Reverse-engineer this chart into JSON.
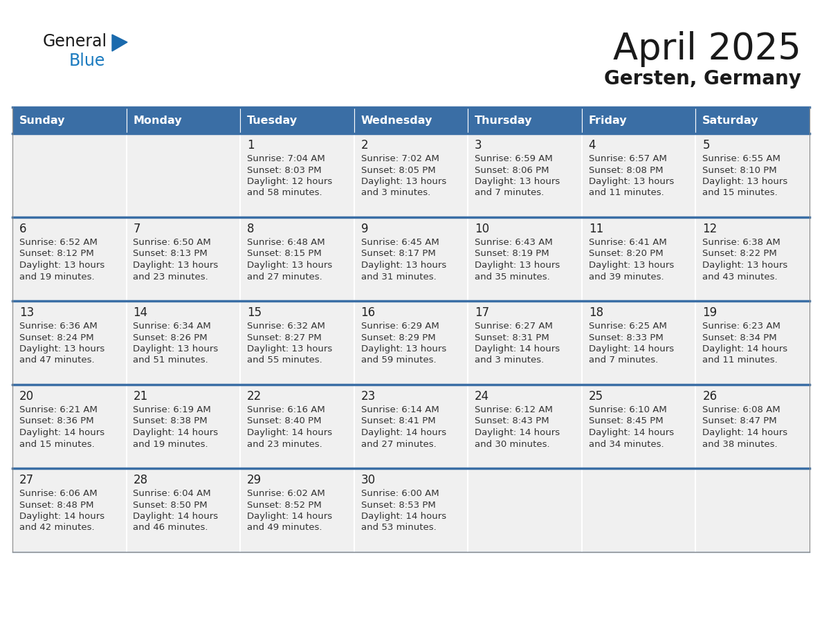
{
  "title": "April 2025",
  "subtitle": "Gersten, Germany",
  "header_bg": "#3a6ea5",
  "header_text": "#ffffff",
  "days_of_week": [
    "Sunday",
    "Monday",
    "Tuesday",
    "Wednesday",
    "Thursday",
    "Friday",
    "Saturday"
  ],
  "cell_bg": "#f0f0f0",
  "cell_border_color": "#3a6ea5",
  "day_num_color": "#222222",
  "info_text_color": "#333333",
  "logo_general_color": "#1a1a1a",
  "logo_blue_color": "#1a7abf",
  "logo_triangle_color": "#1a6aad",
  "calendar": [
    [
      {
        "day": "",
        "info": ""
      },
      {
        "day": "",
        "info": ""
      },
      {
        "day": "1",
        "info": "Sunrise: 7:04 AM\nSunset: 8:03 PM\nDaylight: 12 hours\nand 58 minutes."
      },
      {
        "day": "2",
        "info": "Sunrise: 7:02 AM\nSunset: 8:05 PM\nDaylight: 13 hours\nand 3 minutes."
      },
      {
        "day": "3",
        "info": "Sunrise: 6:59 AM\nSunset: 8:06 PM\nDaylight: 13 hours\nand 7 minutes."
      },
      {
        "day": "4",
        "info": "Sunrise: 6:57 AM\nSunset: 8:08 PM\nDaylight: 13 hours\nand 11 minutes."
      },
      {
        "day": "5",
        "info": "Sunrise: 6:55 AM\nSunset: 8:10 PM\nDaylight: 13 hours\nand 15 minutes."
      }
    ],
    [
      {
        "day": "6",
        "info": "Sunrise: 6:52 AM\nSunset: 8:12 PM\nDaylight: 13 hours\nand 19 minutes."
      },
      {
        "day": "7",
        "info": "Sunrise: 6:50 AM\nSunset: 8:13 PM\nDaylight: 13 hours\nand 23 minutes."
      },
      {
        "day": "8",
        "info": "Sunrise: 6:48 AM\nSunset: 8:15 PM\nDaylight: 13 hours\nand 27 minutes."
      },
      {
        "day": "9",
        "info": "Sunrise: 6:45 AM\nSunset: 8:17 PM\nDaylight: 13 hours\nand 31 minutes."
      },
      {
        "day": "10",
        "info": "Sunrise: 6:43 AM\nSunset: 8:19 PM\nDaylight: 13 hours\nand 35 minutes."
      },
      {
        "day": "11",
        "info": "Sunrise: 6:41 AM\nSunset: 8:20 PM\nDaylight: 13 hours\nand 39 minutes."
      },
      {
        "day": "12",
        "info": "Sunrise: 6:38 AM\nSunset: 8:22 PM\nDaylight: 13 hours\nand 43 minutes."
      }
    ],
    [
      {
        "day": "13",
        "info": "Sunrise: 6:36 AM\nSunset: 8:24 PM\nDaylight: 13 hours\nand 47 minutes."
      },
      {
        "day": "14",
        "info": "Sunrise: 6:34 AM\nSunset: 8:26 PM\nDaylight: 13 hours\nand 51 minutes."
      },
      {
        "day": "15",
        "info": "Sunrise: 6:32 AM\nSunset: 8:27 PM\nDaylight: 13 hours\nand 55 minutes."
      },
      {
        "day": "16",
        "info": "Sunrise: 6:29 AM\nSunset: 8:29 PM\nDaylight: 13 hours\nand 59 minutes."
      },
      {
        "day": "17",
        "info": "Sunrise: 6:27 AM\nSunset: 8:31 PM\nDaylight: 14 hours\nand 3 minutes."
      },
      {
        "day": "18",
        "info": "Sunrise: 6:25 AM\nSunset: 8:33 PM\nDaylight: 14 hours\nand 7 minutes."
      },
      {
        "day": "19",
        "info": "Sunrise: 6:23 AM\nSunset: 8:34 PM\nDaylight: 14 hours\nand 11 minutes."
      }
    ],
    [
      {
        "day": "20",
        "info": "Sunrise: 6:21 AM\nSunset: 8:36 PM\nDaylight: 14 hours\nand 15 minutes."
      },
      {
        "day": "21",
        "info": "Sunrise: 6:19 AM\nSunset: 8:38 PM\nDaylight: 14 hours\nand 19 minutes."
      },
      {
        "day": "22",
        "info": "Sunrise: 6:16 AM\nSunset: 8:40 PM\nDaylight: 14 hours\nand 23 minutes."
      },
      {
        "day": "23",
        "info": "Sunrise: 6:14 AM\nSunset: 8:41 PM\nDaylight: 14 hours\nand 27 minutes."
      },
      {
        "day": "24",
        "info": "Sunrise: 6:12 AM\nSunset: 8:43 PM\nDaylight: 14 hours\nand 30 minutes."
      },
      {
        "day": "25",
        "info": "Sunrise: 6:10 AM\nSunset: 8:45 PM\nDaylight: 14 hours\nand 34 minutes."
      },
      {
        "day": "26",
        "info": "Sunrise: 6:08 AM\nSunset: 8:47 PM\nDaylight: 14 hours\nand 38 minutes."
      }
    ],
    [
      {
        "day": "27",
        "info": "Sunrise: 6:06 AM\nSunset: 8:48 PM\nDaylight: 14 hours\nand 42 minutes."
      },
      {
        "day": "28",
        "info": "Sunrise: 6:04 AM\nSunset: 8:50 PM\nDaylight: 14 hours\nand 46 minutes."
      },
      {
        "day": "29",
        "info": "Sunrise: 6:02 AM\nSunset: 8:52 PM\nDaylight: 14 hours\nand 49 minutes."
      },
      {
        "day": "30",
        "info": "Sunrise: 6:00 AM\nSunset: 8:53 PM\nDaylight: 14 hours\nand 53 minutes."
      },
      {
        "day": "",
        "info": ""
      },
      {
        "day": "",
        "info": ""
      },
      {
        "day": "",
        "info": ""
      }
    ]
  ]
}
